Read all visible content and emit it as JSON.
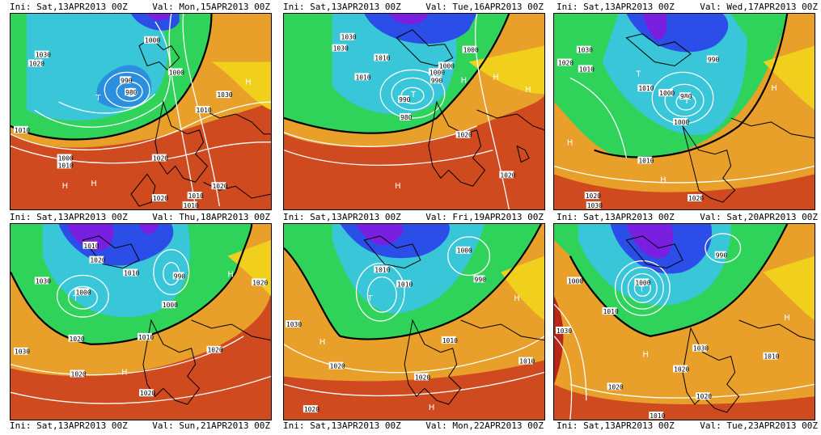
{
  "panels": [
    {
      "ini": "Ini: Sat,13APR2013 00Z",
      "val": "Val: Mon,15APR2013 00Z",
      "labels": [
        "1010",
        "1000",
        "1030",
        "1020",
        "1000",
        "990",
        "980",
        "1010",
        "1020",
        "1030",
        "1000",
        "1010",
        "1020",
        "1020",
        "1010",
        "1010"
      ],
      "highs": [
        "H",
        "H",
        "H"
      ],
      "lows": [
        "T"
      ]
    },
    {
      "ini": "Ini: Sat,13APR2013 00Z",
      "val": "Val: Tue,16APR2013 00Z",
      "labels": [
        "1030",
        "1010",
        "1000",
        "990",
        "990",
        "980",
        "1000",
        "1020",
        "1000",
        "1030",
        "1020",
        "1010"
      ],
      "highs": [
        "H",
        "H",
        "H",
        "H"
      ],
      "lows": [
        "T"
      ]
    },
    {
      "ini": "Ini: Sat,13APR2013 00Z",
      "val": "Val: Wed,17APR2013 00Z",
      "labels": [
        "1030",
        "1020",
        "1010",
        "1010",
        "990",
        "1000",
        "980",
        "1000",
        "1010",
        "1020",
        "1020",
        "1030"
      ],
      "highs": [
        "H",
        "H",
        "H"
      ],
      "lows": [
        "T",
        "T"
      ]
    },
    {
      "ini": "Ini: Sat,13APR2013 00Z",
      "val": "Val: Thu,18APR2013 00Z",
      "labels": [
        "1010",
        "1020",
        "1030",
        "1000",
        "1010",
        "990",
        "1000",
        "1010",
        "1030",
        "1020",
        "1020",
        "1020",
        "1020",
        "1020"
      ],
      "highs": [
        "H",
        "H"
      ],
      "lows": [
        "T"
      ]
    },
    {
      "ini": "Ini: Sat,13APR2013 00Z",
      "val": "Val: Fri,19APR2013 00Z",
      "labels": [
        "1000",
        "1010",
        "1010",
        "990",
        "1030",
        "1020",
        "1020",
        "1010",
        "1010",
        "1020"
      ],
      "highs": [
        "H",
        "H",
        "H"
      ],
      "lows": [
        "T"
      ]
    },
    {
      "ini": "Ini: Sat,13APR2013 00Z",
      "val": "Val: Sat,20APR2013 00Z",
      "labels": [
        "1000",
        "990",
        "1010",
        "1000",
        "1030",
        "1030",
        "1020",
        "1020",
        "1020",
        "1010",
        "1010"
      ],
      "highs": [
        "H",
        "H"
      ],
      "lows": [
        "T"
      ]
    }
  ],
  "bottom_row": [
    {
      "ini": "Ini: Sat,13APR2013 00Z",
      "val": "Val: Sun,21APR2013 00Z"
    },
    {
      "ini": "Ini: Sat,13APR2013 00Z",
      "val": "Val: Mon,22APR2013 00Z"
    },
    {
      "ini": "Ini: Sat,13APR2013 00Z",
      "val": "Val: Tue,23APR2013 00Z"
    }
  ],
  "palette": {
    "purple": "#7a1ee0",
    "blue": "#2b4ee8",
    "cyan": "#38c6d8",
    "green": "#2fd35a",
    "yellow": "#f0d01c",
    "orange": "#e8a02a",
    "red": "#cf4a1e",
    "deep_red": "#b8261a"
  }
}
